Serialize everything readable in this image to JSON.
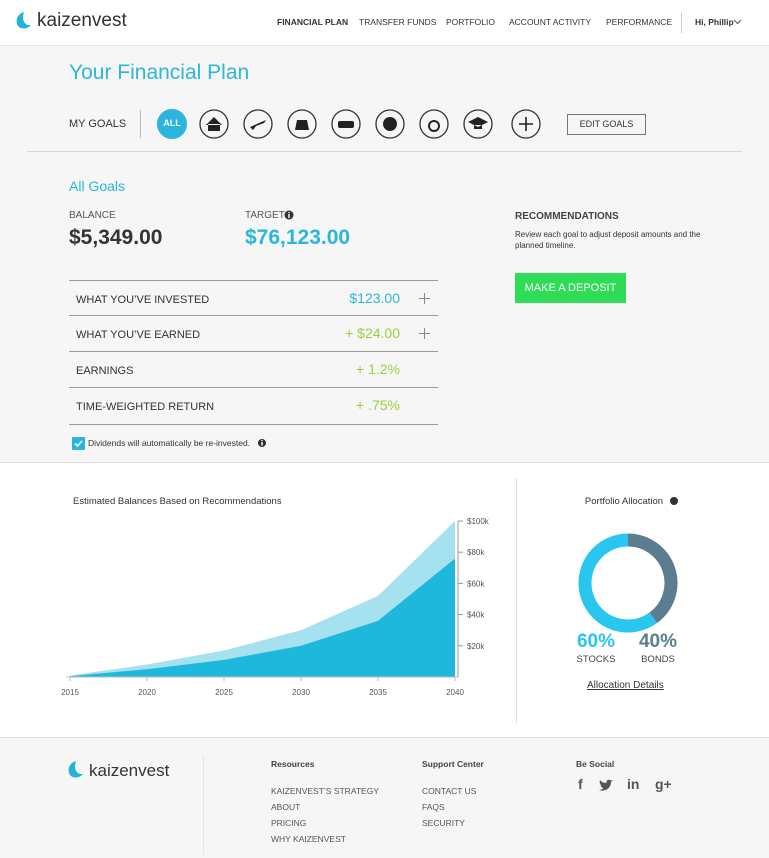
{
  "header": {
    "logo": "kaizenvest",
    "nav": [
      "FINANCIAL PLAN",
      "TRANSFER FUNDS",
      "PORTFOLIO",
      "ACCOUNT ACTIVITY",
      "PERFORMANCE"
    ],
    "user": "Hi, Phillip"
  },
  "plan": {
    "title": "Your Financial Plan",
    "goals_label": "MY GOALS",
    "all_goals": "ALL",
    "edit_goals": "EDIT GOALS"
  },
  "summary": {
    "heading": "All Goals",
    "balance_label": "BALANCE",
    "balance": "$5,349.00",
    "target_label": "TARGET",
    "target": "$76,123.00",
    "rows": [
      {
        "label": "WHAT YOU’VE INVESTED",
        "value": "$123.00"
      },
      {
        "label": "WHAT YOU’VE EARNED",
        "value": "+ $24.00"
      },
      {
        "label": "EARNINGS",
        "value": "+ 1.2%"
      },
      {
        "label": "TIME-WEIGHTED RETURN",
        "value": "+ .75%"
      }
    ],
    "dividends": "Dividends will automatically be re-invested."
  },
  "recommendations": {
    "title": "RECOMMENDATIONS",
    "text": "Review each goal to adjust deposit amounts and the planned timeline.",
    "button": "MAKE A DEPOSIT"
  },
  "chart_data": [
    {
      "type": "area",
      "title": "Estimated Balances Based on Recommendations",
      "x": [
        2015,
        2020,
        2025,
        2030,
        2035,
        2040
      ],
      "series": [
        {
          "color": "#a6e1f0",
          "values": [
            1000,
            8000,
            17000,
            30000,
            52000,
            100000
          ]
        },
        {
          "color": "#1fb8dd",
          "values": [
            500,
            5000,
            11000,
            20000,
            36000,
            76000
          ]
        }
      ],
      "xlim": [
        2015,
        2040
      ],
      "xticks": [
        2015,
        2020,
        2025,
        2030,
        2035,
        2040
      ],
      "ylim": [
        0,
        100000
      ],
      "yticks": [
        {
          "value": 20000,
          "label": "$20k"
        },
        {
          "value": 40000,
          "label": "$40k"
        },
        {
          "value": 60000,
          "label": "$60k"
        },
        {
          "value": 80000,
          "label": "$80k"
        },
        {
          "value": 100000,
          "label": "$100k"
        }
      ]
    },
    {
      "type": "pie",
      "title": "Portfolio Allocation",
      "categories": [
        "STOCKS",
        "BONDS"
      ],
      "values": [
        60,
        40
      ],
      "value_labels": [
        "60%",
        "40%"
      ],
      "colors": [
        "#29c6ef",
        "#5c7d8f"
      ]
    }
  ],
  "allocation_link": "Allocation Details",
  "footer": {
    "logo": "kaizenvest",
    "columns": [
      {
        "title": "Resources",
        "links": [
          "KAIZENVEST’S STRATEGY",
          "ABOUT",
          "PRICING",
          "WHY KAIZENVEST"
        ]
      },
      {
        "title": "Support Center",
        "links": [
          "CONTACT US",
          "FAQS",
          "SECURITY"
        ]
      },
      {
        "title": "Be Social",
        "links": []
      }
    ],
    "social": [
      "f",
      "in",
      "g+"
    ]
  }
}
